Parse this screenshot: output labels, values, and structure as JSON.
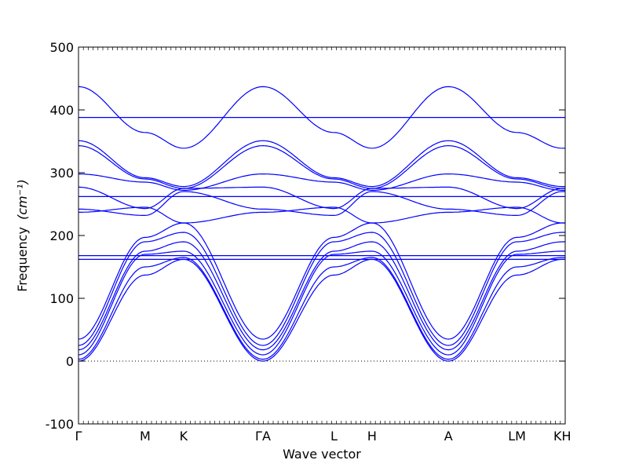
{
  "chart_data": {
    "type": "line",
    "xlabel": "Wave vector",
    "ylabel": "Frequency",
    "ylabel_unit": "(cm⁻¹)",
    "ylim": [
      -100,
      500
    ],
    "yticks": [
      -100,
      0,
      100,
      200,
      300,
      400,
      500
    ],
    "zero_line": "dotted",
    "color": "#0000ff",
    "path_points": [
      {
        "label": "Γ",
        "x": 0.0
      },
      {
        "label": "M",
        "x": 0.137
      },
      {
        "label": "K",
        "x": 0.216
      },
      {
        "label": "ΓA",
        "x": 0.379
      },
      {
        "label": "L",
        "x": 0.525
      },
      {
        "label": "H",
        "x": 0.603
      },
      {
        "label": "A",
        "x": 0.76
      },
      {
        "label": "LM",
        "x": 0.901
      },
      {
        "label": "KH",
        "x": 0.994
      }
    ],
    "xlim": [
      0,
      1
    ],
    "segments": [
      {
        "from": "Γ",
        "to": "M",
        "x0": 0.0,
        "x1": 0.137
      },
      {
        "from": "M",
        "to": "K",
        "x0": 0.137,
        "x1": 0.216
      },
      {
        "from": "K",
        "to": "Γ",
        "x0": 0.216,
        "x1": 0.379
      },
      {
        "from": "A",
        "to": "L",
        "x0": 0.379,
        "x1": 0.525
      },
      {
        "from": "L",
        "to": "H",
        "x0": 0.525,
        "x1": 0.603
      },
      {
        "from": "H",
        "to": "A",
        "x0": 0.603,
        "x1": 0.76
      },
      {
        "from": "A",
        "to": "L",
        "x0": 0.76,
        "x1": 0.901
      },
      {
        "from": "M",
        "to": "K",
        "x0": 0.901,
        "x1": 0.994
      },
      {
        "from": "H",
        "to": "H",
        "x0": 0.994,
        "x1": 1.0
      }
    ],
    "bands": [
      {
        "name": "acoustic-1",
        "gamma": 0,
        "M": 137,
        "K": 162
      },
      {
        "name": "acoustic-2",
        "gamma": 3,
        "M": 150,
        "K": 165
      },
      {
        "name": "acoustic-3",
        "gamma": 10,
        "M": 170,
        "K": 175
      },
      {
        "name": "band-4",
        "gamma": 18,
        "M": 175,
        "K": 190
      },
      {
        "name": "band-5",
        "gamma": 25,
        "M": 190,
        "K": 205
      },
      {
        "name": "band-6",
        "gamma": 35,
        "M": 197,
        "K": 220
      },
      {
        "name": "band-7",
        "gamma": 237,
        "M": 245,
        "K": 220
      },
      {
        "name": "band-8",
        "gamma": 242,
        "M": 232,
        "K": 270
      },
      {
        "name": "band-9",
        "gamma": 277,
        "M": 243,
        "K": 275
      },
      {
        "name": "band-10",
        "gamma": 298,
        "M": 285,
        "K": 272
      },
      {
        "name": "band-11",
        "gamma": 343,
        "M": 290,
        "K": 275
      },
      {
        "name": "band-12",
        "gamma": 351,
        "M": 292,
        "K": 278
      },
      {
        "name": "band-13",
        "gamma": 437,
        "M": 364,
        "K": 339
      },
      {
        "name": "flat-162",
        "gamma": 162,
        "M": 162,
        "K": 162
      },
      {
        "name": "flat-168",
        "gamma": 168,
        "M": 168,
        "K": 168
      },
      {
        "name": "flat-262",
        "gamma": 262,
        "M": 262,
        "K": 262
      },
      {
        "name": "flat-388",
        "gamma": 388,
        "M": 388,
        "K": 388
      }
    ]
  }
}
